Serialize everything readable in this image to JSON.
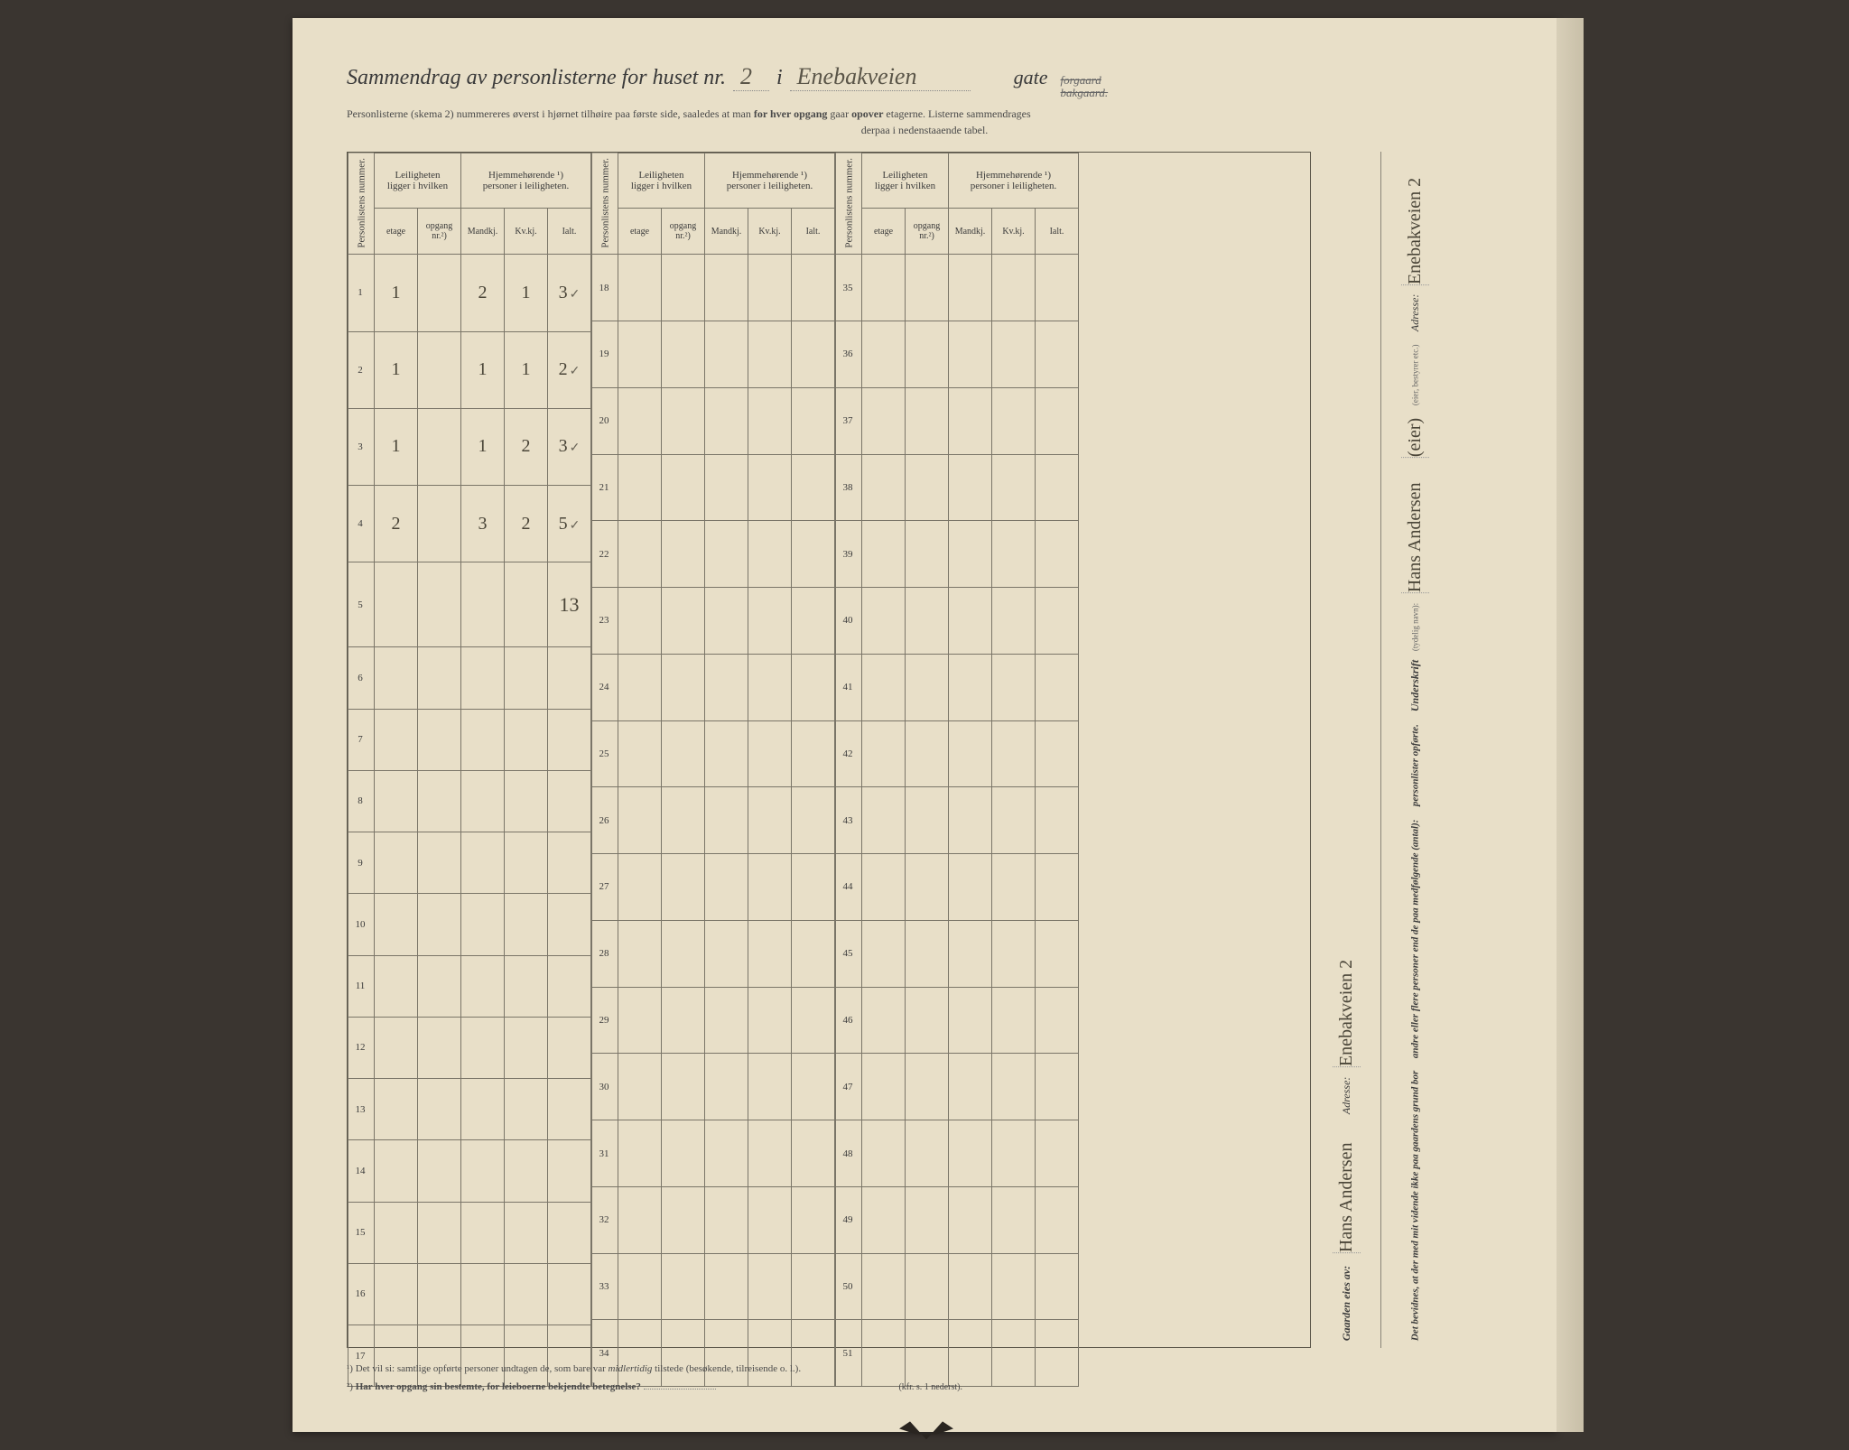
{
  "header": {
    "title_prefix": "Sammendrag av personlisterne for huset nr.",
    "house_nr": "2",
    "i": "i",
    "street": "Enebakveien",
    "gate": "gate",
    "strike1": "forgaard",
    "strike2": "bakgaard.",
    "subtitle_1": "Personlisterne (skema 2) nummereres øverst i hjørnet tilhøire paa første side, saaledes at man",
    "subtitle_bold1": "for hver opgang",
    "subtitle_2": "gaar",
    "subtitle_bold2": "opover",
    "subtitle_3": "etagerne.   Listerne sammendrages",
    "subtitle_center": "derpaa i nedenstaaende tabel."
  },
  "table": {
    "col_personlistens": "Personlistens\nnummer.",
    "grp_leil": "Leiligheten\nligger i hvilken",
    "grp_hjem": "Hjemmehørende ¹)\npersoner i leiligheten.",
    "sub_etage": "etage",
    "sub_opgang": "opgang\nnr.²)",
    "sub_mandkj": "Mandkj.",
    "sub_kvkj": "Kv.kj.",
    "sub_ialt": "Ialt.",
    "blocks": [
      {
        "start": 1,
        "end": 17
      },
      {
        "start": 18,
        "end": 34
      },
      {
        "start": 35,
        "end": 51
      }
    ],
    "rows": [
      {
        "n": 1,
        "etage": "1",
        "opgang": "",
        "m": "2",
        "k": "1",
        "i": "3",
        "check": true
      },
      {
        "n": 2,
        "etage": "1",
        "opgang": "",
        "m": "1",
        "k": "1",
        "i": "2",
        "check": true
      },
      {
        "n": 3,
        "etage": "1",
        "opgang": "",
        "m": "1",
        "k": "2",
        "i": "3",
        "check": true
      },
      {
        "n": 4,
        "etage": "2",
        "opgang": "",
        "m": "3",
        "k": "2",
        "i": "5",
        "check": true
      }
    ],
    "total": "13"
  },
  "right": {
    "owner_label": "Gaarden eies av:",
    "owner_name": "Hans Andersen",
    "adresse_label": "Adresse:",
    "adresse_value": "Enebakveien 2",
    "witness_1": "Det bevidnes, at der med mit vidende ikke paa gaardens grund bor",
    "witness_2": "andre eller flere personer end de paa medfølgende (antal):",
    "witness_3": "personlister opførte.",
    "underskrift_label": "Underskrift",
    "underskrift_small": "(tydelig navn):",
    "underskrift_value": "Hans Andersen",
    "underskrift_role": "(eier)",
    "role_small": "(eier, bestyrer etc.)",
    "adresse2_label": "Adresse:",
    "adresse2_value": "Enebakveien 2"
  },
  "footnotes": {
    "f1": "¹)  Det vil si: samtlige opførte personer undtagen de, som bare var",
    "f1_i": "midlertidig",
    "f1_end": "tilstede (besøkende, tilreisende o. l.).",
    "f2": "²)",
    "f2_b": "Har hver opgang sin bestemte, for leieboerne bekjendte betegnelse?",
    "f2_ref": "(kfr. s. 1 nederst)."
  },
  "style": {
    "paper_bg": "#e8dfc8",
    "ink": "#3a3a3a",
    "handwriting": "#4a4538",
    "border": "#7a7568"
  }
}
